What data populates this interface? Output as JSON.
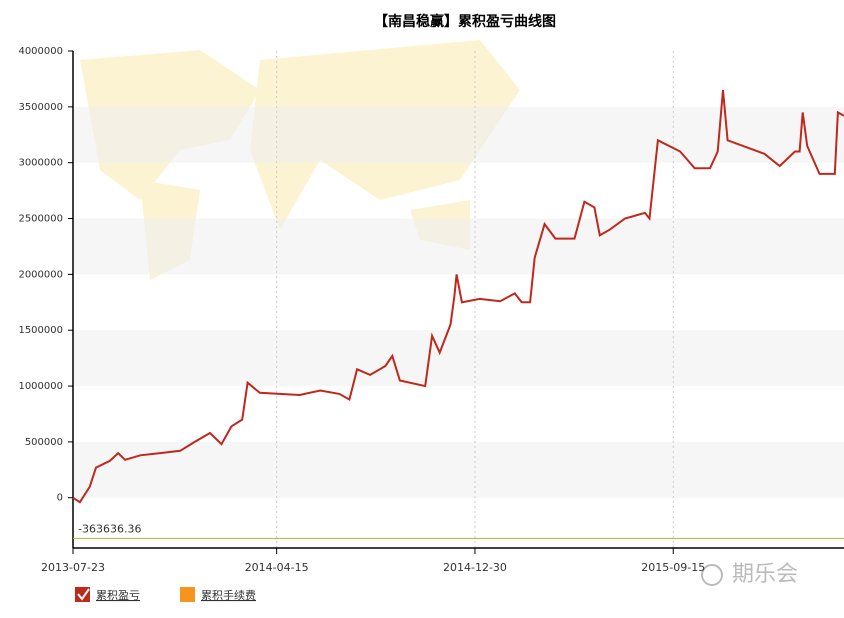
{
  "chart_data": {
    "type": "line",
    "title": "【南昌稳赢】累积盈亏曲线图",
    "x": [
      "2013-07-23",
      "2013-08-01",
      "2013-08-14",
      "2013-08-22",
      "2013-09-09",
      "2013-09-20",
      "2013-09-29",
      "2013-10-19",
      "2013-11-14",
      "2013-12-10",
      "2013-12-29",
      "2014-01-18",
      "2014-02-02",
      "2014-02-15",
      "2014-03-01",
      "2014-03-08",
      "2014-03-24",
      "2014-05-15",
      "2014-06-11",
      "2014-07-06",
      "2014-07-19",
      "2014-07-29",
      "2014-08-15",
      "2014-09-04",
      "2014-09-13",
      "2014-09-23",
      "2014-10-26",
      "2014-11-04",
      "2014-11-14",
      "2014-11-28",
      "2014-12-03",
      "2014-12-06",
      "2014-12-13",
      "2015-01-05",
      "2015-02-01",
      "2015-02-20",
      "2015-03-01",
      "2015-03-12",
      "2015-03-18",
      "2015-03-31",
      "2015-04-14",
      "2015-05-09",
      "2015-05-22",
      "2015-06-04",
      "2015-06-11",
      "2015-06-24",
      "2015-07-14",
      "2015-08-09",
      "2015-08-15",
      "2015-08-26",
      "2015-09-24",
      "2015-10-13",
      "2015-11-02",
      "2015-11-12",
      "2015-11-19",
      "2015-11-25",
      "2015-12-23",
      "2016-01-12",
      "2016-02-01",
      "2016-02-21",
      "2016-02-27",
      "2016-03-02",
      "2016-03-08",
      "2016-03-24",
      "2016-04-13",
      "2016-04-17",
      "2016-04-25"
    ],
    "series": [
      {
        "name": "累积盈亏",
        "color": "#c0281c",
        "values": [
          0,
          -40000,
          100000,
          270000,
          330000,
          400000,
          340000,
          380000,
          400000,
          420000,
          500000,
          580000,
          480000,
          640000,
          700000,
          1030000,
          940000,
          920000,
          960000,
          930000,
          880000,
          1150000,
          1100000,
          1180000,
          1270000,
          1050000,
          1000000,
          1450000,
          1300000,
          1550000,
          1800000,
          2000000,
          1750000,
          1780000,
          1760000,
          1830000,
          1750000,
          1750000,
          2150000,
          2450000,
          2320000,
          2320000,
          2650000,
          2600000,
          2350000,
          2400000,
          2500000,
          2550000,
          2500000,
          3200000,
          3100000,
          2950000,
          2950000,
          3100000,
          3650000,
          3200000,
          3130000,
          3080000,
          2970000,
          3100000,
          3100000,
          3450000,
          3150000,
          2900000,
          2900000,
          3450000,
          3420000
        ]
      }
    ],
    "legend": [
      {
        "name": "累积盈亏",
        "color": "#c0281c"
      },
      {
        "name": "累积手续费",
        "color": "#f7941d"
      }
    ],
    "xlim": [
      "2013-07-23",
      "2016-04-25"
    ],
    "xticks": [
      "2013-07-23",
      "2014-04-15",
      "2014-12-30",
      "2015-09-15"
    ],
    "ylim": [
      -450000,
      4000000
    ],
    "yticks": [
      0,
      500000,
      1000000,
      1500000,
      2000000,
      2500000,
      3000000,
      3500000,
      4000000
    ],
    "min_line": {
      "value": -363636.36,
      "color": "#b5b531"
    },
    "watermark": "期乐会"
  }
}
